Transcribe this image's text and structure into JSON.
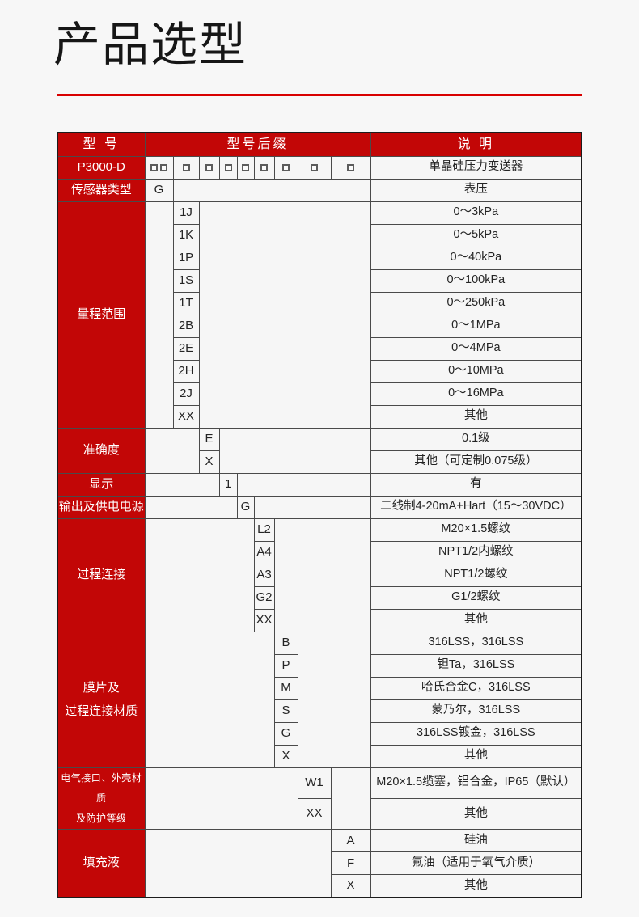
{
  "page": {
    "title": "产品选型"
  },
  "colors": {
    "red": "#c20606",
    "rule_red": "#d80000",
    "grid": "#4a4a4a",
    "page_bg": "#f7f7f7",
    "text": "#242424"
  },
  "table": {
    "header": {
      "model": "型 号",
      "suffix": "型号后缀",
      "desc": "说 明"
    },
    "model_row": {
      "model": "P3000-D",
      "desc": "单晶硅压力变送器",
      "squares": [
        2,
        1,
        1,
        1,
        1,
        1,
        1,
        1,
        1
      ]
    },
    "sections": [
      {
        "label": "传感器类型",
        "rows": [
          {
            "code": "G",
            "desc": "表压"
          }
        ]
      },
      {
        "label": "量程范围",
        "rows": [
          {
            "code": "1J",
            "desc": "0～3kPa"
          },
          {
            "code": "1K",
            "desc": "0～5kPa"
          },
          {
            "code": "1P",
            "desc": "0～40kPa"
          },
          {
            "code": "1S",
            "desc": "0～100kPa"
          },
          {
            "code": "1T",
            "desc": "0～250kPa"
          },
          {
            "code": "2B",
            "desc": "0～1MPa"
          },
          {
            "code": "2E",
            "desc": "0～4MPa"
          },
          {
            "code": "2H",
            "desc": "0～10MPa"
          },
          {
            "code": "2J",
            "desc": "0～16MPa"
          },
          {
            "code": "XX",
            "desc": "其他"
          }
        ]
      },
      {
        "label": "准确度",
        "rows": [
          {
            "code": "E",
            "desc": "0.1级"
          },
          {
            "code": "X",
            "desc": "其他（可定制0.075级）"
          }
        ]
      },
      {
        "label": "显示",
        "rows": [
          {
            "code": "1",
            "desc": "有"
          }
        ]
      },
      {
        "label": "输出及供电电源",
        "rows": [
          {
            "code": "G",
            "desc": "二线制4-20mA+Hart（15～30VDC）"
          }
        ]
      },
      {
        "label": "过程连接",
        "rows": [
          {
            "code": "L2",
            "desc": "M20×1.5螺纹"
          },
          {
            "code": "A4",
            "desc": "NPT1/2内螺纹"
          },
          {
            "code": "A3",
            "desc": "NPT1/2螺纹"
          },
          {
            "code": "G2",
            "desc": "G1/2螺纹"
          },
          {
            "code": "XX",
            "desc": "其他"
          }
        ]
      },
      {
        "label": "膜片及\n过程连接材质",
        "rows": [
          {
            "code": "B",
            "desc": "316LSS，316LSS"
          },
          {
            "code": "P",
            "desc": "钽Ta，316LSS"
          },
          {
            "code": "M",
            "desc": "哈氏合金C，316LSS"
          },
          {
            "code": "S",
            "desc": "蒙乃尔，316LSS"
          },
          {
            "code": "G",
            "desc": "316LSS镀金，316LSS"
          },
          {
            "code": "X",
            "desc": "其他"
          }
        ]
      },
      {
        "label": "电气接口、外壳材质\n及防护等级",
        "rows": [
          {
            "code": "W1",
            "desc": "M20×1.5缆塞，铝合金，IP65（默认）"
          },
          {
            "code": "XX",
            "desc": "其他"
          }
        ]
      },
      {
        "label": "填充液",
        "rows": [
          {
            "code": "A",
            "desc": "硅油"
          },
          {
            "code": "F",
            "desc": "氟油（适用于氧气介质）"
          },
          {
            "code": "X",
            "desc": "其他"
          }
        ]
      }
    ]
  }
}
